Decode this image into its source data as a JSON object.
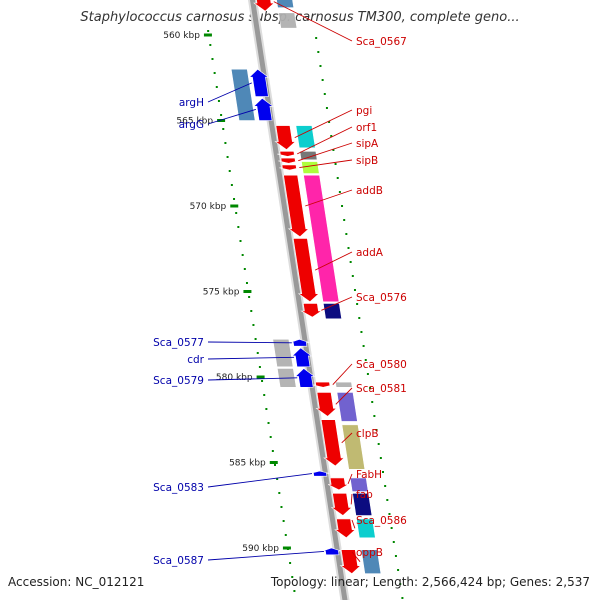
{
  "title": "Staphylococcus carnosus subsp. carnosus TM300, complete geno...",
  "footer": {
    "accession": "Accession: NC_012121",
    "summary": "Topology: linear; Length: 2,566,424 bp; Genes: 2,537"
  },
  "colors": {
    "forward_label": "#cc0000",
    "reverse_label": "#0000aa",
    "axis": "#999999",
    "tick": "#008800",
    "red": "#ee0000",
    "blue": "#0000ee",
    "steel": "#4682b4",
    "cyan": "#00cccc",
    "lime": "#aaff33",
    "magenta": "#ff1aa6",
    "navy": "#00007a",
    "purple": "#6a5acd",
    "olive": "#bdb76b",
    "gray": "#b0b0b0",
    "dark_gray": "#707070"
  },
  "ruler": [
    {
      "label": "560 kbp",
      "kb": 560
    },
    {
      "label": "565 kbp",
      "kb": 565
    },
    {
      "label": "570 kbp",
      "kb": 570
    },
    {
      "label": "575 kbp",
      "kb": 575
    },
    {
      "label": "580 kbp",
      "kb": 580
    },
    {
      "label": "585 kbp",
      "kb": 585
    },
    {
      "label": "590 kbp",
      "kb": 590
    }
  ],
  "forward_genes": [
    {
      "label": "Sca_0567",
      "color": "red",
      "kb_start": 557.5,
      "kb_end": 558.6
    },
    {
      "label": "pgi",
      "color": "red",
      "kb_start": 565.3,
      "kb_end": 566.7
    },
    {
      "label": "orf1",
      "color": "red",
      "kb_start": 566.8,
      "kb_end": 567.1
    },
    {
      "label": "sipA",
      "color": "red",
      "kb_start": 567.2,
      "kb_end": 567.5
    },
    {
      "label": "sipB",
      "color": "red",
      "kb_start": 567.6,
      "kb_end": 567.9
    },
    {
      "label": "addB",
      "color": "red",
      "kb_start": 568.2,
      "kb_end": 571.8
    },
    {
      "label": "addA",
      "color": "red",
      "kb_start": 571.9,
      "kb_end": 575.6
    },
    {
      "label": "Sca_0576",
      "color": "red",
      "kb_start": 575.7,
      "kb_end": 576.5
    },
    {
      "label": "Sca_0580",
      "color": "red",
      "kb_start": 580.3,
      "kb_end": 580.6
    },
    {
      "label": "Sca_0581",
      "color": "red",
      "kb_start": 580.9,
      "kb_end": 582.3
    },
    {
      "label": "clpB",
      "color": "red",
      "kb_start": 582.5,
      "kb_end": 585.2
    },
    {
      "label": "FabH",
      "color": "red",
      "kb_start": 585.9,
      "kb_end": 586.6
    },
    {
      "label": "fab",
      "color": "red",
      "kb_start": 586.8,
      "kb_end": 588.1
    },
    {
      "label": "Sca_0586",
      "color": "red",
      "kb_start": 588.3,
      "kb_end": 589.4
    },
    {
      "label": "oppB",
      "color": "red",
      "kb_start": 590.1,
      "kb_end": 591.5
    }
  ],
  "reverse_genes": [
    {
      "label": "argH",
      "color": "blue",
      "kb_start": 562.0,
      "kb_end": 563.6
    },
    {
      "label": "argG",
      "color": "blue",
      "kb_start": 563.7,
      "kb_end": 565.0
    },
    {
      "label": "Sca_0577",
      "color": "blue",
      "kb_start": 577.8,
      "kb_end": 578.2
    },
    {
      "label": "cdr",
      "color": "blue",
      "kb_start": 578.3,
      "kb_end": 579.4
    },
    {
      "label": "Sca_0579",
      "color": "blue",
      "kb_start": 579.5,
      "kb_end": 580.6
    },
    {
      "label": "Sca_0583",
      "color": "blue",
      "kb_start": 585.5,
      "kb_end": 585.8
    },
    {
      "label": "Sca_0587",
      "color": "blue",
      "kb_start": 590.0,
      "kb_end": 590.4
    }
  ],
  "forward_features": [
    {
      "color": "steel",
      "kb_start": 557.5,
      "kb_end": 558.4
    },
    {
      "color": "gray",
      "kb_start": 558.7,
      "kb_end": 559.6
    },
    {
      "color": "cyan",
      "kb_start": 565.3,
      "kb_end": 566.6
    },
    {
      "color": "dark_gray",
      "kb_start": 566.8,
      "kb_end": 567.3
    },
    {
      "color": "lime",
      "kb_start": 567.4,
      "kb_end": 568.1
    },
    {
      "color": "magenta",
      "kb_start": 568.2,
      "kb_end": 575.6
    },
    {
      "color": "navy",
      "kb_start": 575.7,
      "kb_end": 576.6
    },
    {
      "color": "gray",
      "kb_start": 580.3,
      "kb_end": 580.6
    },
    {
      "color": "purple",
      "kb_start": 580.9,
      "kb_end": 582.6
    },
    {
      "color": "olive",
      "kb_start": 582.8,
      "kb_end": 585.4
    },
    {
      "color": "purple",
      "kb_start": 585.9,
      "kb_end": 586.7
    },
    {
      "color": "navy",
      "kb_start": 586.8,
      "kb_end": 588.1
    },
    {
      "color": "cyan",
      "kb_start": 588.3,
      "kb_end": 589.4
    },
    {
      "color": "steel",
      "kb_start": 590.1,
      "kb_end": 591.5
    }
  ],
  "reverse_features": [
    {
      "color": "steel",
      "kb_start": 562.0,
      "kb_end": 565.0
    },
    {
      "color": "gray",
      "kb_start": 577.8,
      "kb_end": 579.4
    },
    {
      "color": "gray",
      "kb_start": 579.5,
      "kb_end": 580.6
    }
  ]
}
